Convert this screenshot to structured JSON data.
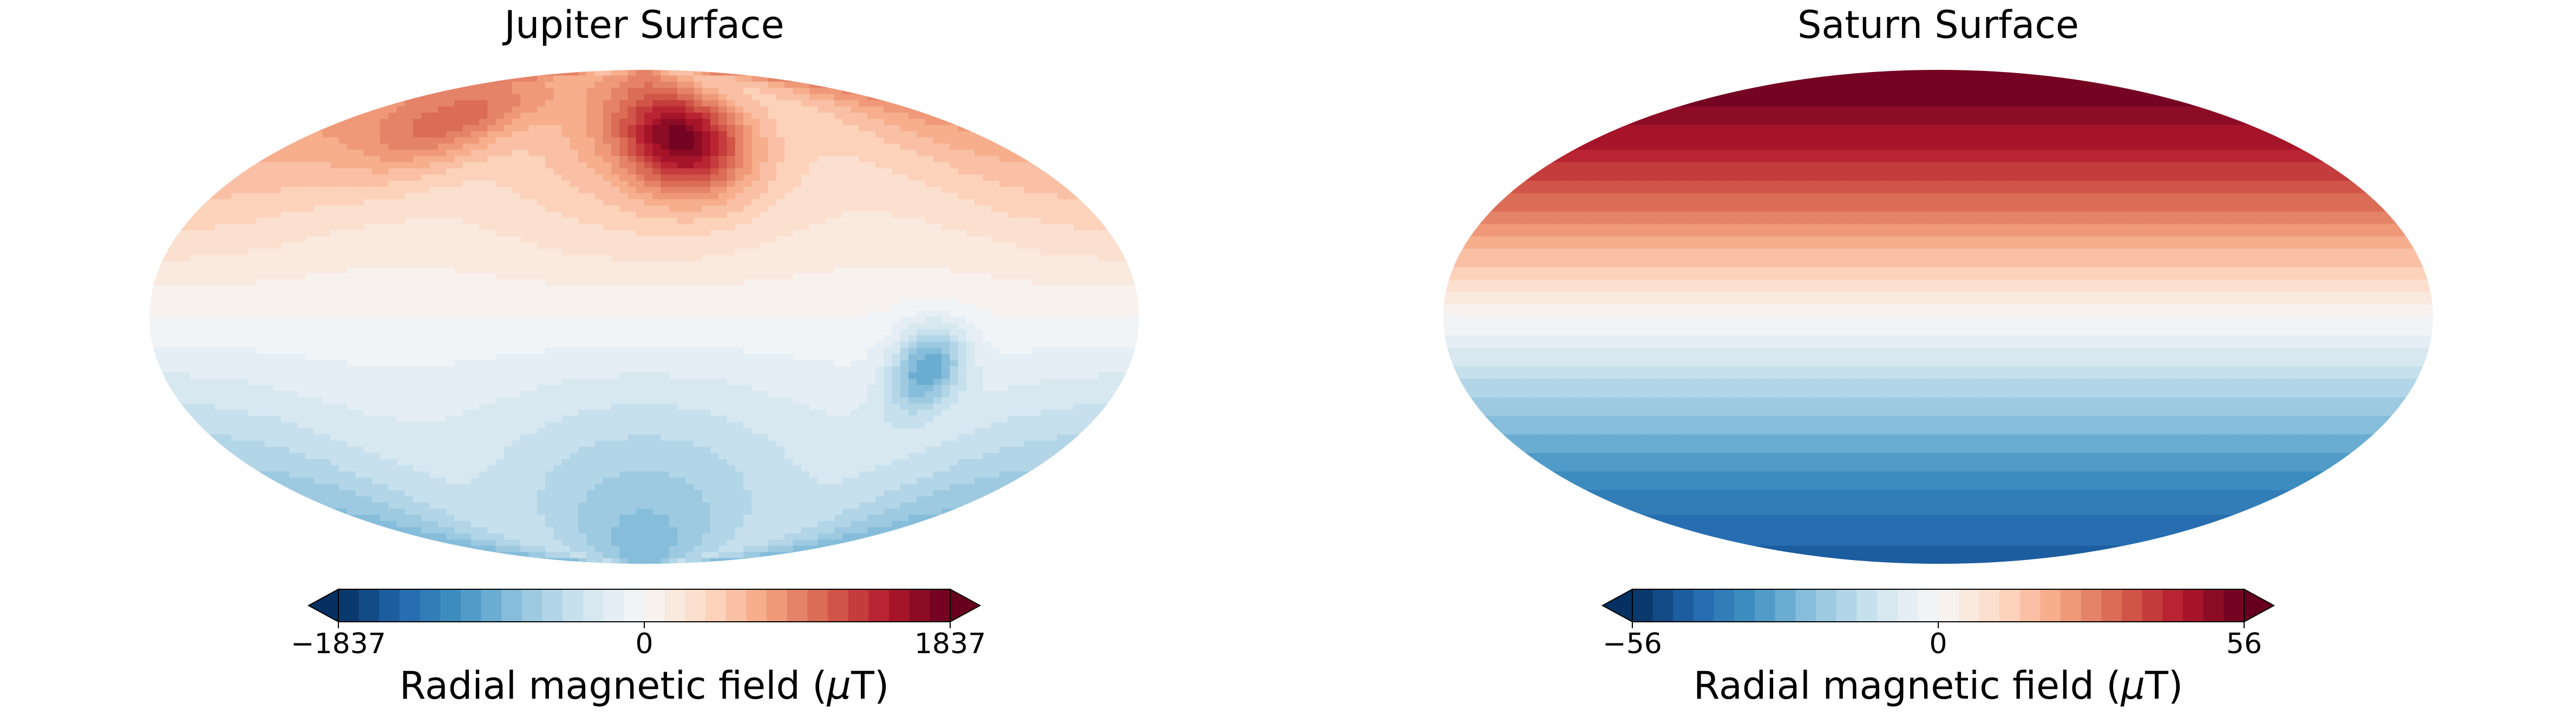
{
  "chart_data": [
    {
      "type": "heatmap",
      "projection": "mollweide",
      "title": "Jupiter  Surface",
      "colormap": "RdBu_r",
      "colorbar": {
        "label_text": "Radial magnetic field (",
        "label_symbol": "μ",
        "label_unit": "T)",
        "vmin": -1837,
        "vmax": 1837,
        "ticks": [
          {
            "value": -1837,
            "label": "−1837"
          },
          {
            "value": 0,
            "label": "0"
          },
          {
            "value": 1837,
            "label": "1837"
          }
        ],
        "levels": 30,
        "extend": "both"
      },
      "field_features": [
        {
          "lon": 20,
          "lat": 55,
          "value": 1837,
          "kind": "positive-max"
        },
        {
          "lon": -110,
          "lat": 62,
          "value": 950,
          "kind": "positive-lobe"
        },
        {
          "lon": 105,
          "lat": -15,
          "value": -1100,
          "kind": "negative-spot"
        },
        {
          "lon": 0,
          "lat": 75,
          "value": 500,
          "kind": "north-cap"
        },
        {
          "lon": 0,
          "lat": -75,
          "value": -500,
          "kind": "south-cap"
        }
      ]
    },
    {
      "type": "heatmap",
      "projection": "mollweide",
      "title": "Saturn  Surface",
      "colormap": "RdBu_r",
      "colorbar": {
        "label_text": "Radial magnetic field (",
        "label_symbol": "μ",
        "label_unit": "T)",
        "vmin": -56,
        "vmax": 56,
        "ticks": [
          {
            "value": -56,
            "label": "−56"
          },
          {
            "value": 0,
            "label": "0"
          },
          {
            "value": 56,
            "label": "56"
          }
        ],
        "levels": 30,
        "extend": "both"
      },
      "field_features": [
        {
          "lat": 90,
          "value": 56,
          "kind": "north-pole"
        },
        {
          "lat": 0,
          "value": 0,
          "kind": "equator"
        },
        {
          "lat": -90,
          "value": -45,
          "kind": "south-pole"
        }
      ]
    }
  ]
}
